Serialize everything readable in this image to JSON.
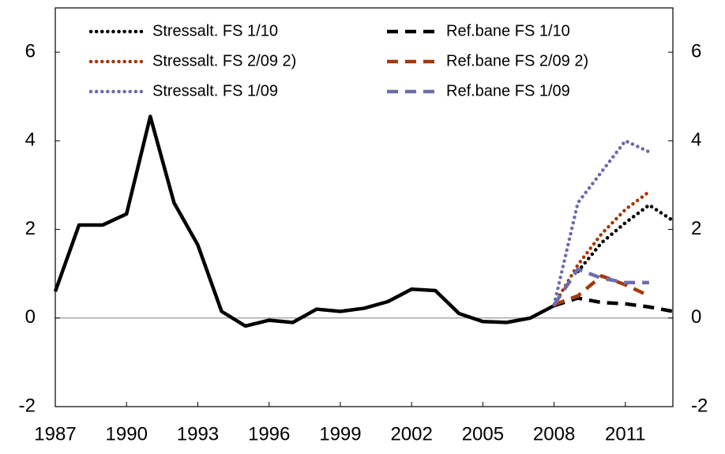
{
  "chart_data": {
    "type": "line",
    "xlim": [
      1987,
      2013
    ],
    "xticks": [
      1987,
      1990,
      1993,
      1996,
      1999,
      2002,
      2005,
      2008,
      2011
    ],
    "ylim": [
      -2,
      7
    ],
    "yticks": [
      -2,
      0,
      2,
      4,
      6
    ],
    "series": [
      {
        "color": "#000000",
        "dash": "solid",
        "x": [
          1987,
          1988,
          1989,
          1990,
          1991,
          1992,
          1993,
          1994,
          1995,
          1996,
          1997,
          1998,
          1999,
          2000,
          2001,
          2002,
          2003,
          2004,
          2005,
          2006,
          2007,
          2008
        ],
        "values": [
          0.6,
          2.1,
          2.1,
          2.35,
          4.55,
          2.6,
          1.65,
          0.15,
          -0.18,
          -0.05,
          -0.1,
          0.2,
          0.15,
          0.22,
          0.37,
          0.65,
          0.62,
          0.1,
          -0.08,
          -0.1,
          0.0,
          0.28
        ]
      },
      {
        "name": "Stressalt. FS 1/10",
        "color": "#000000",
        "dash": "dotted",
        "x": [
          2009,
          2010,
          2011,
          2012,
          2013
        ],
        "values": [
          1.05,
          1.7,
          2.15,
          2.55,
          2.2
        ]
      },
      {
        "name": "Ref.bane FS 1/10",
        "color": "#000000",
        "dash": "dashed",
        "x": [
          2008,
          2009,
          2010,
          2011,
          2012,
          2013
        ],
        "values": [
          0.28,
          0.45,
          0.35,
          0.32,
          0.25,
          0.15
        ]
      },
      {
        "name": "Stressalt. FS 2/09 2)",
        "color": "#a33a0c",
        "dash": "dotted",
        "x": [
          2008,
          2009,
          2010,
          2011,
          2012
        ],
        "values": [
          0.3,
          1.2,
          1.9,
          2.45,
          2.85
        ]
      },
      {
        "name": "Ref.bane FS 2/09 2)",
        "color": "#a33a0c",
        "dash": "dashed",
        "x": [
          2008,
          2009,
          2010,
          2011,
          2012
        ],
        "values": [
          0.3,
          0.5,
          0.95,
          0.75,
          0.5
        ]
      },
      {
        "name": "Stressalt. FS 1/09",
        "color": "#6d6dab",
        "dash": "dotted",
        "x": [
          2008,
          2009,
          2010,
          2011,
          2012
        ],
        "values": [
          0.3,
          2.6,
          3.3,
          4.0,
          3.75
        ]
      },
      {
        "name": "Ref.bane FS 1/09",
        "color": "#6d6dab",
        "dash": "dashed",
        "x": [
          2008,
          2009,
          2010,
          2011,
          2012
        ],
        "values": [
          0.3,
          1.1,
          0.9,
          0.8,
          0.8
        ]
      }
    ]
  }
}
